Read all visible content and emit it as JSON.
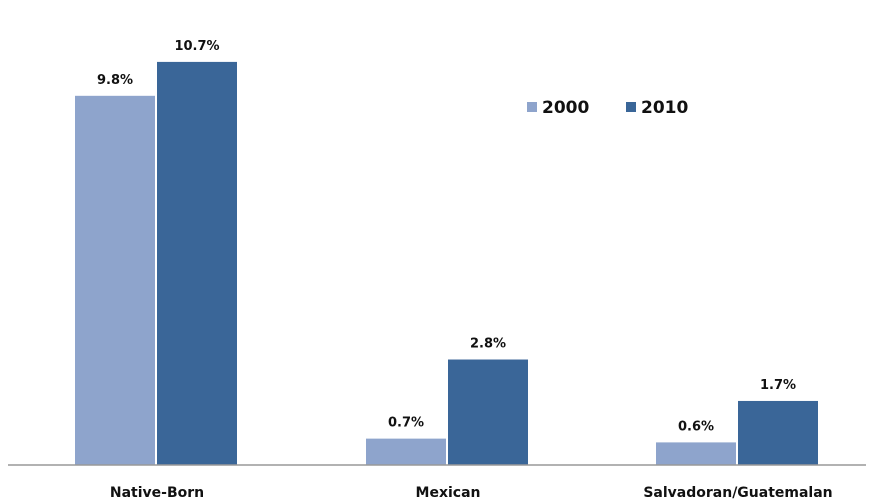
{
  "chart_data": {
    "type": "bar",
    "categories": [
      "Native-Born",
      "Mexican",
      "Salvadoran/Guatemalan"
    ],
    "series": [
      {
        "name": "2000",
        "values": [
          9.8,
          0.7,
          0.6
        ],
        "labels": [
          "9.8%",
          "0.7%",
          "0.6%"
        ],
        "color": "#8EA4CC"
      },
      {
        "name": "2010",
        "values": [
          10.7,
          2.8,
          1.7
        ],
        "labels": [
          "10.7%",
          "2.8%",
          "1.7%"
        ],
        "color": "#3A6698"
      }
    ],
    "ylim": [
      0,
      11.6
    ],
    "grid": false,
    "legend_position": "top-right",
    "colors": {
      "baseline": "#999999"
    }
  }
}
